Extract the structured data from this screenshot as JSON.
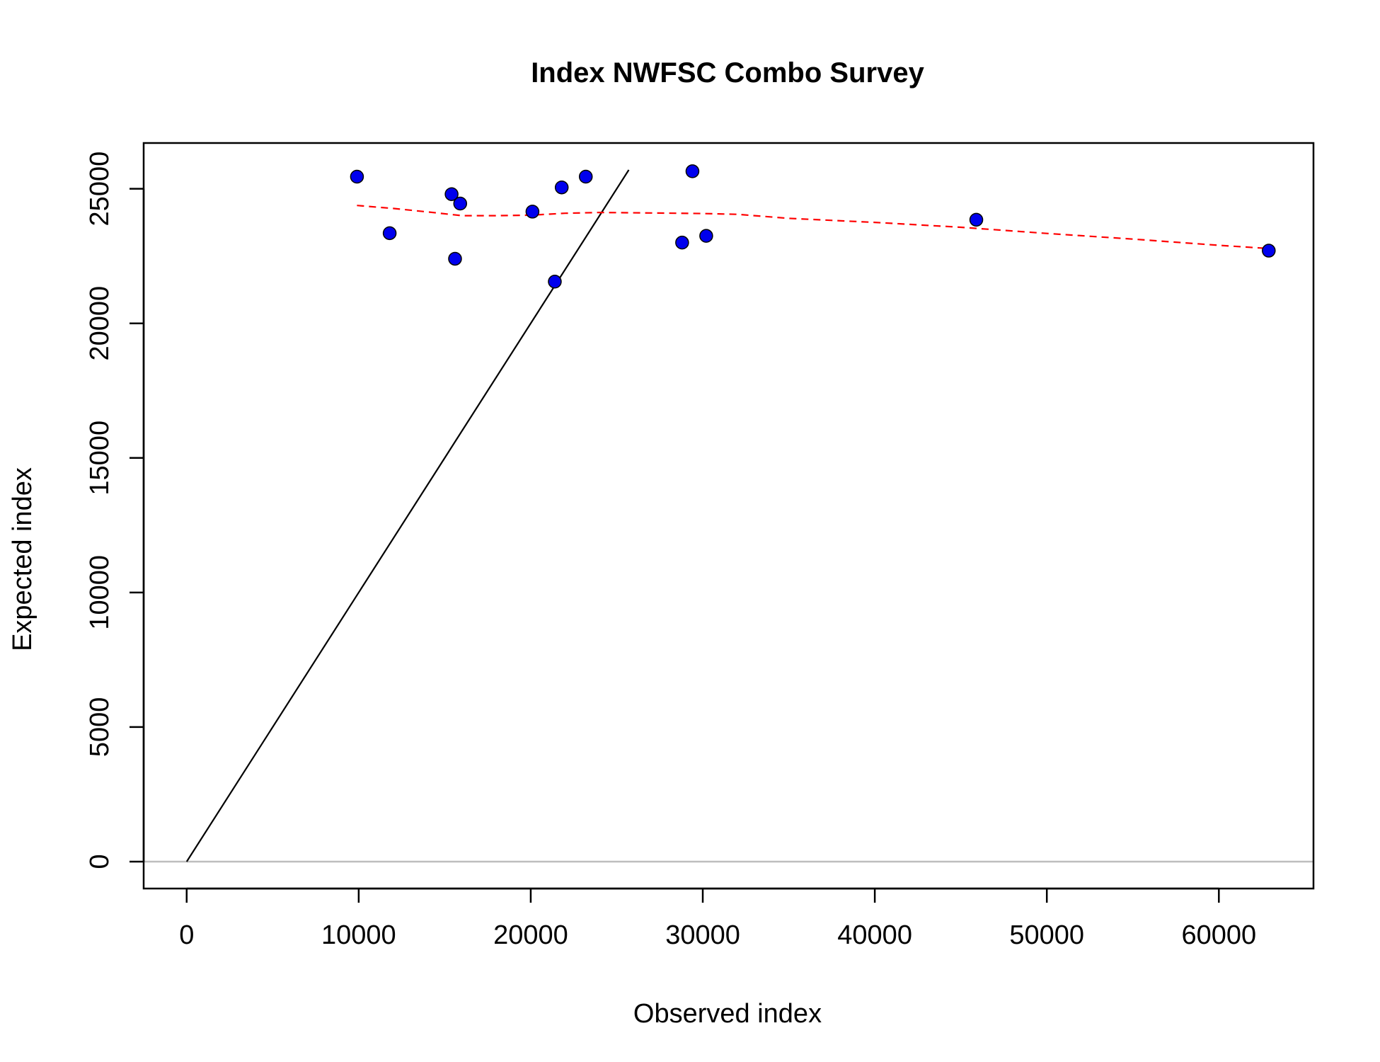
{
  "chart_data": {
    "type": "scatter",
    "title": "Index NWFSC Combo Survey",
    "xlabel": "Observed index",
    "ylabel": "Expected index",
    "xlim": [
      -2500,
      65500
    ],
    "ylim": [
      -1000,
      26700
    ],
    "xticks": [
      0,
      10000,
      20000,
      30000,
      40000,
      50000,
      60000
    ],
    "yticks": [
      0,
      5000,
      10000,
      15000,
      20000,
      25000
    ],
    "grid": false,
    "legend": "none",
    "series": [
      {
        "type": "scatter",
        "color": "#0000ee",
        "edge_color": "#000000",
        "points": [
          {
            "x": 9900,
            "y": 25450
          },
          {
            "x": 11800,
            "y": 23350
          },
          {
            "x": 15400,
            "y": 24800
          },
          {
            "x": 15600,
            "y": 22400
          },
          {
            "x": 15900,
            "y": 24450
          },
          {
            "x": 20100,
            "y": 24150
          },
          {
            "x": 21400,
            "y": 21550
          },
          {
            "x": 21800,
            "y": 25050
          },
          {
            "x": 23200,
            "y": 25450
          },
          {
            "x": 28800,
            "y": 23000
          },
          {
            "x": 29400,
            "y": 25650
          },
          {
            "x": 30200,
            "y": 23250
          },
          {
            "x": 45900,
            "y": 23850
          },
          {
            "x": 62900,
            "y": 22700
          }
        ]
      },
      {
        "type": "line",
        "style": "dashed",
        "color": "#ff0000",
        "x": [
          9900,
          12000,
          14000,
          16000,
          18000,
          20000,
          22000,
          24000,
          27000,
          30000,
          32000,
          35000,
          40000,
          45000,
          50000,
          55000,
          60000,
          62900
        ],
        "y": [
          24380,
          24270,
          24140,
          24000,
          24000,
          24020,
          24090,
          24120,
          24100,
          24080,
          24050,
          23900,
          23750,
          23570,
          23340,
          23130,
          22900,
          22780
        ]
      },
      {
        "type": "line",
        "style": "solid",
        "color": "#000000",
        "x": [
          0,
          25700
        ],
        "y": [
          0,
          25700
        ]
      },
      {
        "type": "hline",
        "color": "#bebebe",
        "y": 0
      }
    ]
  }
}
